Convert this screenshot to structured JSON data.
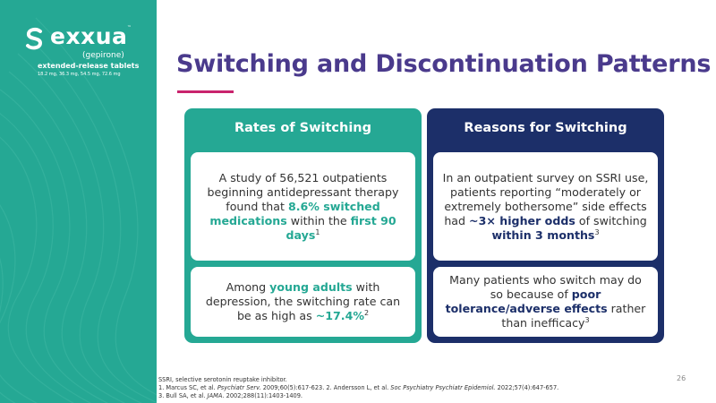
{
  "brand": {
    "name": "exxua",
    "trademark": "™",
    "generic": "(gepirone)",
    "formulation": "extended-release tablets",
    "strengths": "18.2 mg, 36.3 mg, 54.5 mg, 72.6 mg"
  },
  "slide": {
    "title": "Switching and Discontinuation Patterns",
    "page_number": "26"
  },
  "left_panel": {
    "header": "Rates of Switching",
    "top_card": {
      "t1": "A study of 56,521 outpatients beginning antidepressant therapy found that ",
      "h1": "8.6% switched medications",
      "t2": " within the ",
      "h2": "first 90 days",
      "ref": "1"
    },
    "bottom_card": {
      "t1": "Among ",
      "h1": "young adults",
      "t2": " with depression, the switching rate can be as high as ",
      "h2": "~17.4%",
      "ref": "2"
    }
  },
  "right_panel": {
    "header": "Reasons for Switching",
    "top_card": {
      "t1": "In an outpatient survey on SSRI use, patients reporting “moderately or extremely bothersome” side effects had ",
      "h1": "~3× higher odds",
      "t2": " of switching ",
      "h2": "within 3 months",
      "ref": "3"
    },
    "bottom_card": {
      "t1": "Many patients who switch may do so because of ",
      "h1": "poor tolerance/adverse effects",
      "t2": " rather than inefficacy",
      "ref": "3"
    }
  },
  "footnotes": {
    "abbr": "SSRI, selective serotonin reuptake inhibitor.",
    "ref1_a": "1. Marcus SC, et al. ",
    "ref1_j": "Psychiatr Serv.",
    "ref1_b": " 2009;60(5):617-623. 2. Andersson L, et al. ",
    "ref2_j": "Soc Psychiatry Psychiatr Epidemiol.",
    "ref2_b": " 2022;57(4):647-657.",
    "ref3_a": "3. Bull SA, et al. ",
    "ref3_j": "JAMA.",
    "ref3_b": " 2002;288(11):1403-1409."
  },
  "colors": {
    "teal": "#25a894",
    "navy": "#1c2f69",
    "title_purple": "#4a3a8c",
    "accent_magenta": "#c9236d"
  }
}
